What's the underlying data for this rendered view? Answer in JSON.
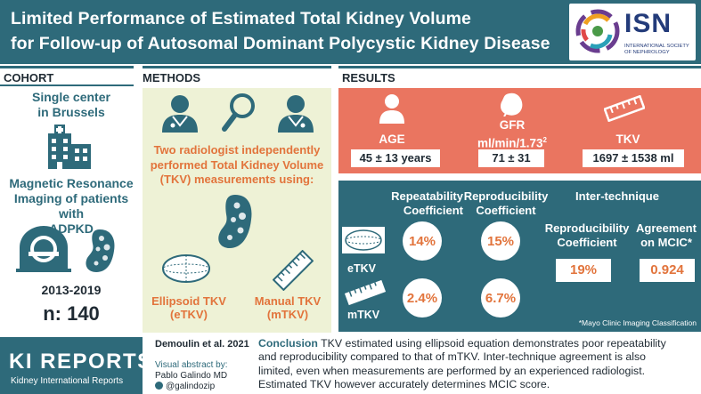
{
  "header": {
    "title_line1": "Limited Performance of Estimated Total Kidney Volume",
    "title_line2": "for Follow-up of Autosomal Dominant Polycystic Kidney Disease",
    "logo_text": "ISN",
    "logo_sub1": "INTERNATIONAL SOCIETY",
    "logo_sub2": "OF NEPHROLOGY"
  },
  "cohort": {
    "heading": "COHORT",
    "center_line1": "Single center",
    "center_line2": "in Brussels",
    "mri_line1": "Magnetic Resonance",
    "mri_line2": "Imaging of patients with",
    "mri_line3": "ADPKD",
    "years": "2013-2019",
    "n": "n: 140"
  },
  "methods": {
    "heading": "METHODS",
    "desc_line1": "Two radiologist independently",
    "desc_line2": "performed Total Kidney Volume",
    "desc_line3": "(TKV) measurements using:",
    "ellipsoid_line1": "Ellipsoid TKV",
    "ellipsoid_line2": "(eTKV)",
    "manual_line1": "Manual TKV",
    "manual_line2": "(mTKV)"
  },
  "results": {
    "heading": "RESULTS",
    "age_label": "AGE",
    "age_value": "45 ± 13 years",
    "gfr_label1": "GFR",
    "gfr_label2": "ml/min/1.73",
    "gfr_sup": "2",
    "gfr_value": "71 ± 31",
    "tkv_label": "TKV",
    "tkv_value": "1697 ± 1538 ml",
    "repeat_head1": "Repeatability",
    "repeat_head2": "Coefficient",
    "repro_head1": "Reproducibility",
    "repro_head2": "Coefficient",
    "inter_head": "Inter-technique",
    "inter_repro1": "Reproducibility",
    "inter_repro2": "Coefficient",
    "agree1": "Agreement",
    "agree2": "on MCIC*",
    "etkv_label": "eTKV",
    "mtkv_label": "mTKV",
    "etkv_repeat": "14%",
    "etkv_repro": "15%",
    "mtkv_repeat": "2.4%",
    "mtkv_repro": "6.7%",
    "inter_repro_value": "19%",
    "agree_value": "0.924",
    "footnote": "*Mayo Clinic Imaging Classification"
  },
  "footer": {
    "journal_line1": "KI REPORTS",
    "journal_line2": "Kidney International Reports",
    "citation": "Demoulin et al.  2021",
    "va_label": "Visual abstract by:",
    "author": "Pablo Galindo MD",
    "handle": "@galindozip",
    "conclusion_head": "Conclusion",
    "conclusion_line1": " TKV estimated using ellipsoid equation demonstrates poor repeatability",
    "conclusion_line2": "and reproducibility compared to that of mTKV. Inter-technique agreement is also",
    "conclusion_line3": "limited, even when measurements are performed by an experienced radiologist.",
    "conclusion_line4": "Estimated TKV however accurately determines MCIC score."
  },
  "colors": {
    "teal": "#2e6a7a",
    "coral": "#ea7560",
    "orange": "#e2743c",
    "cream": "#eef2d6"
  }
}
